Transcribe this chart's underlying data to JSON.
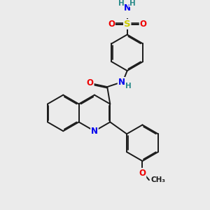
{
  "bg_color": "#ebebeb",
  "bond_color": "#1a1a1a",
  "bond_width": 1.4,
  "dbo": 0.055,
  "atom_colors": {
    "N": "#0000ee",
    "O": "#ee0000",
    "S": "#cccc00",
    "H": "#2a8a8a",
    "C": "#1a1a1a"
  },
  "fs": 8.5,
  "hfs": 7.5
}
